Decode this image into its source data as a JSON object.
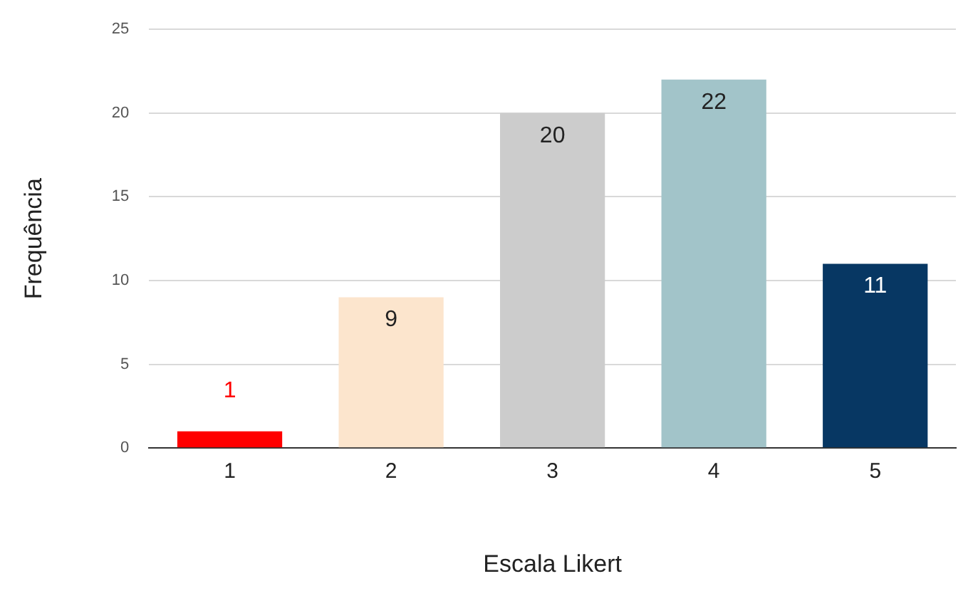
{
  "chart_data": {
    "type": "bar",
    "xlabel": "Escala Likert",
    "ylabel": "Frequência",
    "categories": [
      "1",
      "2",
      "3",
      "4",
      "5"
    ],
    "values": [
      1,
      9,
      20,
      22,
      11
    ],
    "colors": [
      "#ff0000",
      "#fce5cd",
      "#cccccc",
      "#a2c4c9",
      "#073763"
    ],
    "ylim": [
      0,
      25
    ],
    "yticks": [
      0,
      5,
      10,
      15,
      20,
      25
    ],
    "grid": "y",
    "data_labels": true,
    "legend": false
  }
}
